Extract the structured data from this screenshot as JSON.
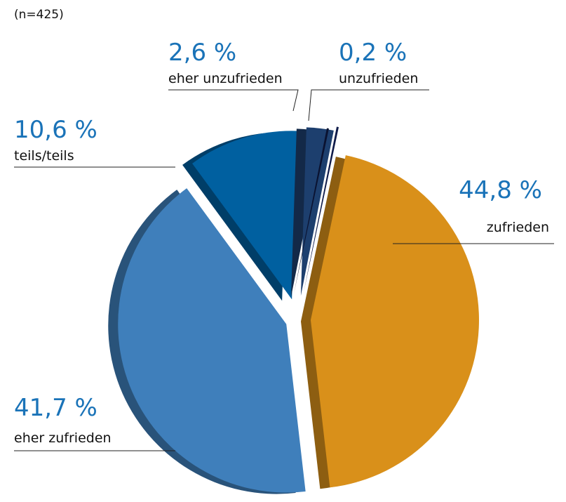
{
  "chart_data": {
    "type": "pie",
    "subtitle": "(n=425)",
    "categories": [
      "zufrieden",
      "eher zufrieden",
      "teils/teils",
      "eher unzufrieden",
      "unzufrieden"
    ],
    "values": [
      44.8,
      41.7,
      10.6,
      2.6,
      0.2
    ],
    "value_labels": [
      "44,8 %",
      "41,7 %",
      "10,6 %",
      "2,6 %",
      "0,2 %"
    ],
    "colors": [
      "#d9901a",
      "#3f7fbb",
      "#0060a0",
      "#1d3f6e",
      "#0f1b4a"
    ]
  }
}
